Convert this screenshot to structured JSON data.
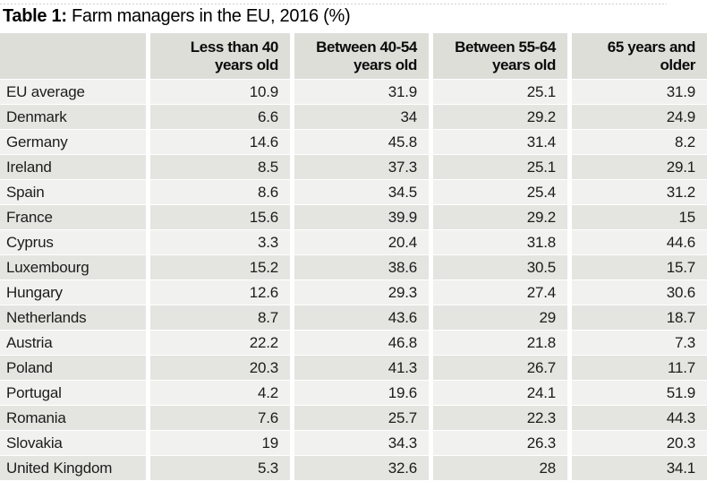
{
  "colors": {
    "header_bg": "#dedeD9",
    "row_odd": "#f1f1ef",
    "row_even": "#e4e4e0",
    "text": "#1c1c1a",
    "title": "#000000"
  },
  "title": {
    "prefix": "Table 1:",
    "text": " Farm managers in the EU, 2016 (%)"
  },
  "table": {
    "headers": [
      "",
      "Less than 40\nyears old",
      "Between 40-54\nyears old",
      "Between 55-64\nyears old",
      "65 years and\nolder"
    ]
  },
  "chart_data": {
    "type": "table",
    "title": "Table 1: Farm managers in the EU, 2016 (%)",
    "columns": [
      "Less than 40 years old",
      "Between 40-54 years old",
      "Between 55-64 years old",
      "65 years and older"
    ],
    "unit": "%",
    "year": "2016",
    "rows": [
      {
        "label": "EU average",
        "values": [
          10.9,
          31.9,
          25.1,
          31.9
        ]
      },
      {
        "label": "Denmark",
        "values": [
          6.6,
          34,
          29.2,
          24.9
        ]
      },
      {
        "label": "Germany",
        "values": [
          14.6,
          45.8,
          31.4,
          8.2
        ]
      },
      {
        "label": "Ireland",
        "values": [
          8.5,
          37.3,
          25.1,
          29.1
        ]
      },
      {
        "label": "Spain",
        "values": [
          8.6,
          34.5,
          25.4,
          31.2
        ]
      },
      {
        "label": "France",
        "values": [
          15.6,
          39.9,
          29.2,
          15
        ]
      },
      {
        "label": "Cyprus",
        "values": [
          3.3,
          20.4,
          31.8,
          44.6
        ]
      },
      {
        "label": "Luxembourg",
        "values": [
          15.2,
          38.6,
          30.5,
          15.7
        ]
      },
      {
        "label": "Hungary",
        "values": [
          12.6,
          29.3,
          27.4,
          30.6
        ]
      },
      {
        "label": "Netherlands",
        "values": [
          8.7,
          43.6,
          29,
          18.7
        ]
      },
      {
        "label": "Austria",
        "values": [
          22.2,
          46.8,
          21.8,
          7.3
        ]
      },
      {
        "label": "Poland",
        "values": [
          20.3,
          41.3,
          26.7,
          11.7
        ]
      },
      {
        "label": "Portugal",
        "values": [
          4.2,
          19.6,
          24.1,
          51.9
        ]
      },
      {
        "label": "Romania",
        "values": [
          7.6,
          25.7,
          22.3,
          44.3
        ]
      },
      {
        "label": "Slovakia",
        "values": [
          19,
          34.3,
          26.3,
          20.3
        ]
      },
      {
        "label": "United Kingdom",
        "values": [
          5.3,
          32.6,
          28,
          34.1
        ]
      }
    ]
  }
}
